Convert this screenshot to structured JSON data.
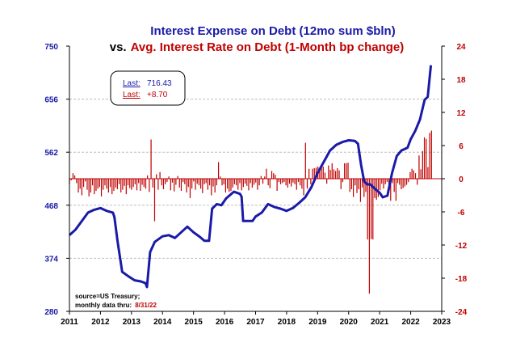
{
  "chart_data": {
    "type": "bar+line",
    "title_line1": "Interest Expense on Debt (12mo sum $bln)",
    "title_line2_prefix": "vs.",
    "title_line2_red": "Avg. Interest Rate on Debt (1-Month bp change)",
    "left_axis": {
      "range": [
        280,
        750
      ],
      "ticks": [
        "750",
        "656",
        "562",
        "468",
        "374",
        "280"
      ],
      "color": "#1a1aa8"
    },
    "right_axis": {
      "range": [
        -24,
        24
      ],
      "ticks": [
        "24",
        "18",
        "12",
        "6",
        "0",
        "-6",
        "-12",
        "-18",
        "-24"
      ],
      "color": "#c00000"
    },
    "x_axis": {
      "range": [
        2011,
        2023
      ],
      "ticks": [
        "2011",
        "2012",
        "2013",
        "2014",
        "2015",
        "2016",
        "2017",
        "2018",
        "2019",
        "2020",
        "2021",
        "2022",
        "2023"
      ]
    },
    "grid": "horizontal dashed",
    "legend_box": {
      "line_label": "Last:",
      "line_value": "716.43",
      "bar_label": "Last:",
      "bar_value": "+8.70"
    },
    "note_line1": "source=US Treasury;",
    "note_line2_prefix": "monthly data thru:",
    "note_line2_date": "8/31/22",
    "series": [
      {
        "name": "Interest Expense on Debt (12mo sum $bln)",
        "axis": "left",
        "color": "#1a1aa8",
        "points": [
          [
            2011.0,
            415
          ],
          [
            2011.2,
            425
          ],
          [
            2011.4,
            440
          ],
          [
            2011.6,
            455
          ],
          [
            2011.8,
            460
          ],
          [
            2012.0,
            463
          ],
          [
            2012.2,
            458
          ],
          [
            2012.4,
            455
          ],
          [
            2012.45,
            447
          ],
          [
            2012.55,
            405
          ],
          [
            2012.7,
            350
          ],
          [
            2012.9,
            342
          ],
          [
            2013.1,
            335
          ],
          [
            2013.3,
            333
          ],
          [
            2013.45,
            330
          ],
          [
            2013.5,
            323
          ],
          [
            2013.6,
            385
          ],
          [
            2013.75,
            403
          ],
          [
            2014.0,
            413
          ],
          [
            2014.2,
            415
          ],
          [
            2014.4,
            410
          ],
          [
            2014.6,
            420
          ],
          [
            2014.8,
            430
          ],
          [
            2015.0,
            420
          ],
          [
            2015.2,
            412
          ],
          [
            2015.35,
            405
          ],
          [
            2015.5,
            405
          ],
          [
            2015.6,
            462
          ],
          [
            2015.75,
            470
          ],
          [
            2015.9,
            468
          ],
          [
            2016.05,
            480
          ],
          [
            2016.3,
            492
          ],
          [
            2016.5,
            488
          ],
          [
            2016.55,
            483
          ],
          [
            2016.6,
            440
          ],
          [
            2016.8,
            440
          ],
          [
            2016.9,
            440
          ],
          [
            2017.0,
            448
          ],
          [
            2017.2,
            455
          ],
          [
            2017.4,
            470
          ],
          [
            2017.6,
            465
          ],
          [
            2017.8,
            462
          ],
          [
            2018.0,
            458
          ],
          [
            2018.2,
            463
          ],
          [
            2018.4,
            472
          ],
          [
            2018.6,
            482
          ],
          [
            2018.8,
            500
          ],
          [
            2019.0,
            525
          ],
          [
            2019.2,
            545
          ],
          [
            2019.4,
            565
          ],
          [
            2019.6,
            575
          ],
          [
            2019.8,
            580
          ],
          [
            2020.0,
            583
          ],
          [
            2020.2,
            582
          ],
          [
            2020.3,
            577
          ],
          [
            2020.4,
            540
          ],
          [
            2020.5,
            510
          ],
          [
            2020.6,
            505
          ],
          [
            2020.7,
            505
          ],
          [
            2020.85,
            497
          ],
          [
            2021.0,
            490
          ],
          [
            2021.1,
            482
          ],
          [
            2021.25,
            485
          ],
          [
            2021.4,
            525
          ],
          [
            2021.55,
            555
          ],
          [
            2021.7,
            565
          ],
          [
            2021.9,
            570
          ],
          [
            2022.0,
            585
          ],
          [
            2022.15,
            600
          ],
          [
            2022.3,
            620
          ],
          [
            2022.45,
            655
          ],
          [
            2022.55,
            660
          ],
          [
            2022.65,
            716
          ]
        ]
      },
      {
        "name": "Avg. Interest Rate on Debt (1-Month bp change)",
        "axis": "right",
        "color": "#c00000",
        "values": [
          -1,
          -0.3,
          1,
          0.6,
          -0.8,
          -2.5,
          -1.8,
          -3,
          -1.5,
          -0.5,
          -2,
          -3.2,
          -2.5,
          -1.2,
          -2.8,
          -2.2,
          -1.8,
          -1.5,
          -3.2,
          -2,
          -1.2,
          -1.8,
          -2.5,
          -1.5,
          -2.8,
          -2.2,
          -1.6,
          -1.9,
          -1,
          -2.5,
          -2,
          -1.3,
          -2.8,
          -1.2,
          -1.7,
          -2,
          -1.5,
          -1,
          -2.1,
          -0.8,
          -2.2,
          -1.1,
          -1.5,
          -1.8,
          0.6,
          -2.4,
          7.1,
          -1.6,
          -7.7,
          0.8,
          -2,
          1.2,
          -1.2,
          -1.9,
          -1,
          -0.6,
          0.4,
          -2.1,
          -0.7,
          -2.3,
          -1.1,
          0.5,
          -1.6,
          -2.2,
          -0.6,
          -1,
          -2.5,
          -1.5,
          -3.5,
          -1.8,
          -0.5,
          -2,
          -0.9,
          -1.2,
          -1.8,
          -2.6,
          -1,
          -0.8,
          -2,
          -1.2,
          -3,
          -1.4,
          -2.5,
          -1.2,
          3,
          0.4,
          -1.2,
          -1,
          -2.5,
          -1.8,
          -2.4,
          -2.2,
          -1.6,
          -1,
          -1.2,
          -2,
          -0.8,
          -2.1,
          -1.5,
          -0.9,
          -1.3,
          -2.1,
          -0.8,
          -1.6,
          -1.1,
          -0.7,
          -2,
          -1.2,
          0.5,
          -0.9,
          0.4,
          1.8,
          -1.2,
          -1.7,
          1.4,
          1,
          0.7,
          -2.2,
          -0.6,
          -1,
          -0.8,
          -0.6,
          -1.2,
          -1.6,
          -0.9,
          -1.4,
          -0.7,
          -1,
          -2,
          -0.6,
          -1.2,
          -1.8,
          -3,
          6.5,
          -1.8,
          1.8,
          -1,
          1.8,
          1.9,
          2,
          2.2,
          1.4,
          2.5,
          2.2,
          1.1,
          -0.9,
          2.4,
          1.6,
          2.8,
          1.7,
          1.4,
          1.9,
          1.5,
          -1.9,
          -0.6,
          2.8,
          2.8,
          2.9,
          -2.4,
          -1.9,
          -3.3,
          -1.2,
          -2.6,
          -1.9,
          -4.2,
          -1.6,
          -3.3,
          -2.4,
          -11,
          -20.8,
          -10.9,
          -11,
          -3.5,
          -3.8,
          -3.3,
          -2.1,
          -0.9,
          -1.8,
          -1,
          -0.6,
          -1.3,
          -4,
          -0.8,
          -2.4,
          -4,
          -0.8,
          -1.1,
          -1.9,
          -1.7,
          -1.4,
          -1.1,
          -0.6,
          1.2,
          1.8,
          1.5,
          1,
          -1.1,
          4.2,
          1.7,
          5,
          7.5,
          7.2,
          2.1,
          8.3,
          8.7
        ]
      }
    ]
  }
}
